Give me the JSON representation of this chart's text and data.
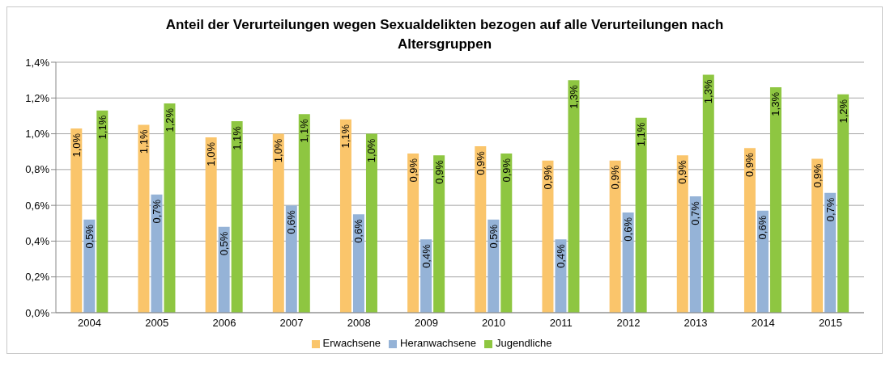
{
  "chart_data": {
    "type": "bar",
    "title": "Anteil der Verurteilungen wegen Sexualdelikten bezogen auf alle Verurteilungen nach Altersgruppen",
    "categories": [
      "2004",
      "2005",
      "2006",
      "2007",
      "2008",
      "2009",
      "2010",
      "2011",
      "2012",
      "2013",
      "2014",
      "2015"
    ],
    "series": [
      {
        "name": "Erwachsene",
        "color": "#fac56b",
        "values": [
          1.03,
          1.05,
          0.98,
          1.0,
          1.08,
          0.89,
          0.93,
          0.85,
          0.85,
          0.88,
          0.92,
          0.86
        ],
        "value_labels": [
          "1,0%",
          "1,1%",
          "1,0%",
          "1,0%",
          "1,1%",
          "0,9%",
          "0,9%",
          "0,9%",
          "0,9%",
          "0,9%",
          "0,9%",
          "0,9%"
        ]
      },
      {
        "name": "Heranwachsene",
        "color": "#95b3d7",
        "values": [
          0.52,
          0.66,
          0.48,
          0.6,
          0.55,
          0.41,
          0.52,
          0.41,
          0.56,
          0.65,
          0.57,
          0.67
        ],
        "value_labels": [
          "0,5%",
          "0,7%",
          "0,5%",
          "0,6%",
          "0,6%",
          "0,4%",
          "0,5%",
          "0,4%",
          "0,6%",
          "0,7%",
          "0,6%",
          "0,7%"
        ]
      },
      {
        "name": "Jugendliche",
        "color": "#8ec641",
        "values": [
          1.13,
          1.17,
          1.07,
          1.11,
          1.0,
          0.88,
          0.89,
          1.3,
          1.09,
          1.33,
          1.26,
          1.22
        ],
        "value_labels": [
          "1,1%",
          "1,2%",
          "1,1%",
          "1,1%",
          "1,0%",
          "0,9%",
          "0,9%",
          "1,3%",
          "1,1%",
          "1,3%",
          "1,3%",
          "1,2%"
        ]
      }
    ],
    "ylim": [
      0,
      1.4
    ],
    "yticks": [
      {
        "value": 0,
        "label": "0,0%"
      },
      {
        "value": 0.2,
        "label": "0,2%"
      },
      {
        "value": 0.4,
        "label": "0,4%"
      },
      {
        "value": 0.6,
        "label": "0,6%"
      },
      {
        "value": 0.8,
        "label": "0,8%"
      },
      {
        "value": 1.0,
        "label": "1,0%"
      },
      {
        "value": 1.2,
        "label": "1,2%"
      },
      {
        "value": 1.4,
        "label": "1,4%"
      }
    ],
    "grid": "y",
    "legend": "bottom"
  }
}
